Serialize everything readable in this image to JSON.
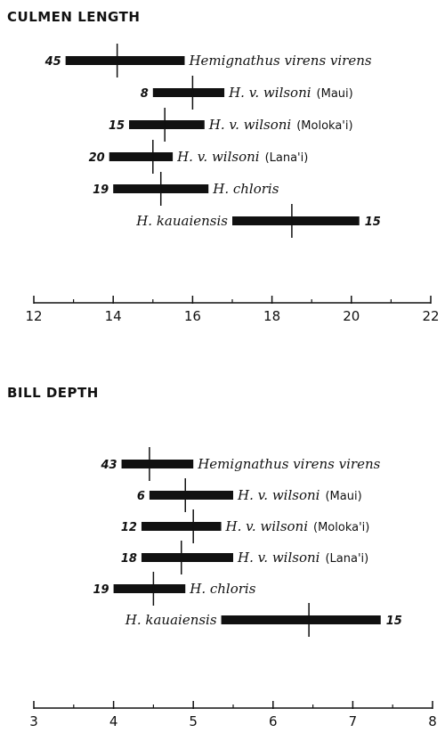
{
  "chart_data": [
    {
      "type": "range",
      "title": "CULMEN LENGTH",
      "xlim": [
        12,
        22
      ],
      "ticks": [
        {
          "value": 12,
          "label": "12"
        },
        {
          "value": 14,
          "label": "14"
        },
        {
          "value": 16,
          "label": "16"
        },
        {
          "value": 18,
          "label": "18"
        },
        {
          "value": 20,
          "label": "20"
        },
        {
          "value": 22,
          "label": "22"
        }
      ],
      "minor_ticks": [
        13,
        15,
        17,
        19,
        21
      ],
      "rows": [
        {
          "taxon": "Hemignathus virens virens",
          "locality": "",
          "n": "45",
          "low": 12.8,
          "high": 15.8,
          "mean": 14.1,
          "label_side": "right"
        },
        {
          "taxon": "H. v. wilsoni",
          "locality": "(Maui)",
          "n": "8",
          "low": 15.0,
          "high": 16.8,
          "mean": 16.0,
          "label_side": "right"
        },
        {
          "taxon": "H. v. wilsoni",
          "locality": "(Moloka'i)",
          "n": "15",
          "low": 14.4,
          "high": 16.3,
          "mean": 15.3,
          "label_side": "right"
        },
        {
          "taxon": "H. v. wilsoni",
          "locality": "(Lana'i)",
          "n": "20",
          "low": 13.9,
          "high": 15.5,
          "mean": 15.0,
          "label_side": "right"
        },
        {
          "taxon": "H. chloris",
          "locality": "",
          "n": "19",
          "low": 14.0,
          "high": 16.4,
          "mean": 15.2,
          "label_side": "right"
        },
        {
          "taxon": "H. kauaiensis",
          "locality": "",
          "n": "15",
          "low": 17.0,
          "high": 20.2,
          "mean": 18.5,
          "label_side": "left"
        }
      ]
    },
    {
      "type": "range",
      "title": "BILL DEPTH",
      "xlim": [
        3,
        8
      ],
      "ticks": [
        {
          "value": 3,
          "label": "3"
        },
        {
          "value": 4,
          "label": "4"
        },
        {
          "value": 5,
          "label": "5"
        },
        {
          "value": 6,
          "label": "6"
        },
        {
          "value": 7,
          "label": "7"
        },
        {
          "value": 8,
          "label": "8"
        }
      ],
      "minor_ticks": [
        3.5,
        4.5,
        5.5,
        6.5,
        7.5
      ],
      "rows": [
        {
          "taxon": "Hemignathus virens virens",
          "locality": "",
          "n": "43",
          "low": 4.1,
          "high": 5.0,
          "mean": 4.45,
          "label_side": "right"
        },
        {
          "taxon": "H. v. wilsoni",
          "locality": "(Maui)",
          "n": "6",
          "low": 4.45,
          "high": 5.5,
          "mean": 4.9,
          "label_side": "right"
        },
        {
          "taxon": "H. v. wilsoni",
          "locality": "(Moloka'i)",
          "n": "12",
          "low": 4.35,
          "high": 5.35,
          "mean": 5.0,
          "label_side": "right"
        },
        {
          "taxon": "H. v. wilsoni",
          "locality": "(Lana'i)",
          "n": "18",
          "low": 4.35,
          "high": 5.5,
          "mean": 4.85,
          "label_side": "right"
        },
        {
          "taxon": "H. chloris",
          "locality": "",
          "n": "19",
          "low": 4.0,
          "high": 4.9,
          "mean": 4.5,
          "label_side": "right"
        },
        {
          "taxon": "H. kauaiensis",
          "locality": "",
          "n": "15",
          "low": 5.35,
          "high": 7.35,
          "mean": 6.45,
          "label_side": "left"
        }
      ]
    }
  ]
}
